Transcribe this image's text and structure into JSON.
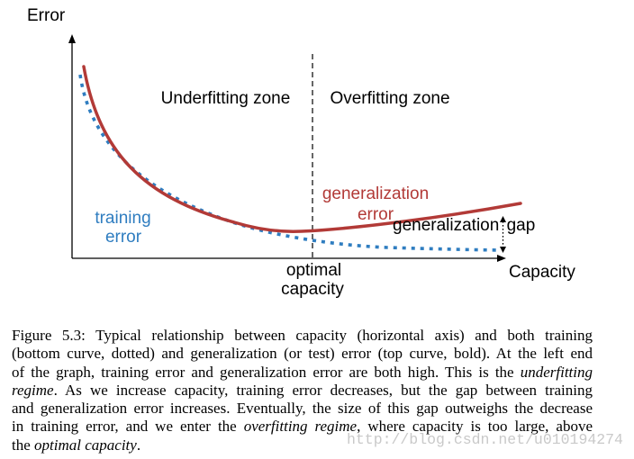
{
  "figure": {
    "y_axis_label": "Error",
    "x_axis_label": "Capacity",
    "zones": {
      "underfitting": "Underfitting zone",
      "overfitting": "Overfitting zone"
    },
    "optimal_capacity_label": [
      "optimal",
      "capacity"
    ],
    "curves": {
      "training": {
        "label_lines": [
          "training",
          "error"
        ],
        "color": "#2f7dc0"
      },
      "generalization": {
        "label_lines": [
          "generalization",
          "error"
        ],
        "color": "#b23a37"
      }
    },
    "gap_label": "generalization gap"
  },
  "caption": {
    "lines": [
      [
        "Figure 5.3: Typical relationship between capacity (horizontal axis) and both training"
      ],
      [
        "(bottom curve, dotted) and generalization (or test) error (top curve, bold). At the left end"
      ],
      [
        "of the graph, training error and generalization error are both high. This is the ",
        "underfitting"
      ],
      [
        "regime",
        ". As we increase capacity, training error decreases, but the gap between training"
      ],
      [
        "and generalization error increases. Eventually, the size of this gap outweighs the decrease"
      ],
      [
        "in training error, and we enter the ",
        "overfitting regime",
        ", where capacity is too large, above"
      ],
      [
        "the ",
        "optimal capacity",
        "."
      ]
    ]
  },
  "watermark": "http://blog.csdn.net/u010194274"
}
